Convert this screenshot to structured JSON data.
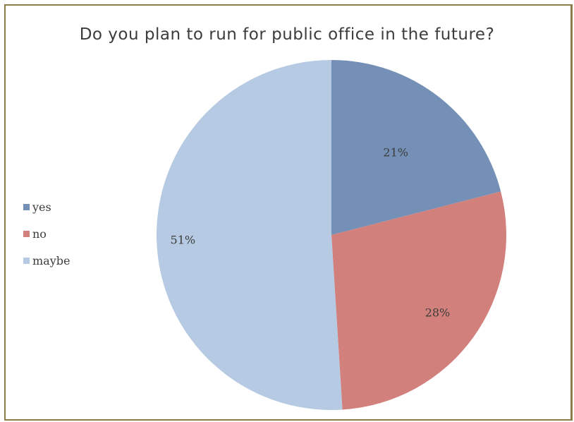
{
  "chart_data": {
    "type": "pie",
    "title": "Do you plan to run for public office in the future?",
    "categories": [
      "yes",
      "no",
      "maybe"
    ],
    "values": [
      21,
      28,
      51
    ],
    "labels": [
      "21%",
      "28%",
      "51%"
    ],
    "colors": [
      "#7490b6",
      "#d2807c",
      "#b6cae3"
    ],
    "legend_position": "left"
  }
}
